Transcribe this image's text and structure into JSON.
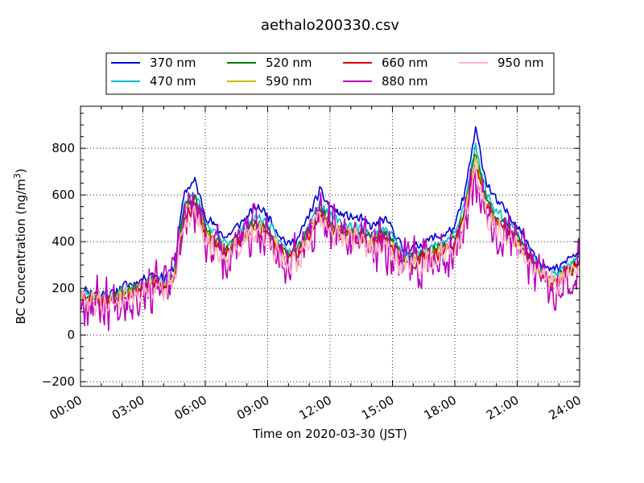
{
  "chart_data": {
    "type": "line",
    "title": "aethalo200330.csv",
    "xlabel": "Time on 2020-03-30 (JST)",
    "ylabel_main": "BC Concentration (ng/m",
    "ylabel_sup": "3",
    "ylabel_tail": ")",
    "xlim": [
      0,
      24
    ],
    "ylim": [
      -220,
      980
    ],
    "x_ticks": [
      {
        "v": 0,
        "label": "00:00"
      },
      {
        "v": 3,
        "label": "03:00"
      },
      {
        "v": 6,
        "label": "06:00"
      },
      {
        "v": 9,
        "label": "09:00"
      },
      {
        "v": 12,
        "label": "12:00"
      },
      {
        "v": 15,
        "label": "15:00"
      },
      {
        "v": 18,
        "label": "18:00"
      },
      {
        "v": 21,
        "label": "21:00"
      },
      {
        "v": 24,
        "label": "24:00"
      }
    ],
    "y_ticks": [
      {
        "v": -200,
        "label": "−200"
      },
      {
        "v": 0,
        "label": "0"
      },
      {
        "v": 200,
        "label": "200"
      },
      {
        "v": 400,
        "label": "400"
      },
      {
        "v": 600,
        "label": "600"
      },
      {
        "v": 800,
        "label": "800"
      }
    ],
    "grid": true,
    "legend_position": "top-center",
    "baseline": {
      "x": [
        0,
        0.5,
        1,
        1.5,
        2,
        2.5,
        3,
        3.5,
        4,
        4.5,
        5,
        5.5,
        6,
        6.5,
        7,
        7.5,
        8,
        8.5,
        9,
        9.5,
        10,
        10.5,
        11,
        11.5,
        12,
        12.5,
        13,
        13.5,
        14,
        14.5,
        15,
        15.5,
        16,
        16.5,
        17,
        17.5,
        18,
        18.5,
        19,
        19.5,
        20,
        20.5,
        21,
        21.5,
        22,
        22.5,
        23,
        23.5,
        24
      ],
      "y": [
        180,
        170,
        160,
        160,
        190,
        200,
        220,
        240,
        220,
        260,
        560,
        600,
        470,
        420,
        380,
        420,
        460,
        500,
        470,
        400,
        350,
        380,
        470,
        560,
        500,
        470,
        460,
        450,
        420,
        450,
        420,
        330,
        340,
        360,
        380,
        390,
        420,
        560,
        800,
        600,
        520,
        480,
        430,
        360,
        300,
        250,
        260,
        300,
        320
      ]
    },
    "series": [
      {
        "name": "370 nm",
        "color": "#0000dd",
        "amp": 1.1,
        "noise": 25,
        "seed": 11
      },
      {
        "name": "470 nm",
        "color": "#00bfcf",
        "amp": 1.02,
        "noise": 25,
        "seed": 23
      },
      {
        "name": "520 nm",
        "color": "#007700",
        "amp": 0.97,
        "noise": 28,
        "seed": 37
      },
      {
        "name": "590 nm",
        "color": "#c8c000",
        "amp": 0.94,
        "noise": 30,
        "seed": 41
      },
      {
        "name": "660 nm",
        "color": "#dd0000",
        "amp": 0.92,
        "noise": 38,
        "seed": 53
      },
      {
        "name": "880 nm",
        "color": "#bb00bb",
        "amp": 0.9,
        "noise": 140,
        "seed": 67
      },
      {
        "name": "950 nm",
        "color": "#ffb6c1",
        "amp": 0.88,
        "noise": 70,
        "seed": 79
      }
    ]
  }
}
